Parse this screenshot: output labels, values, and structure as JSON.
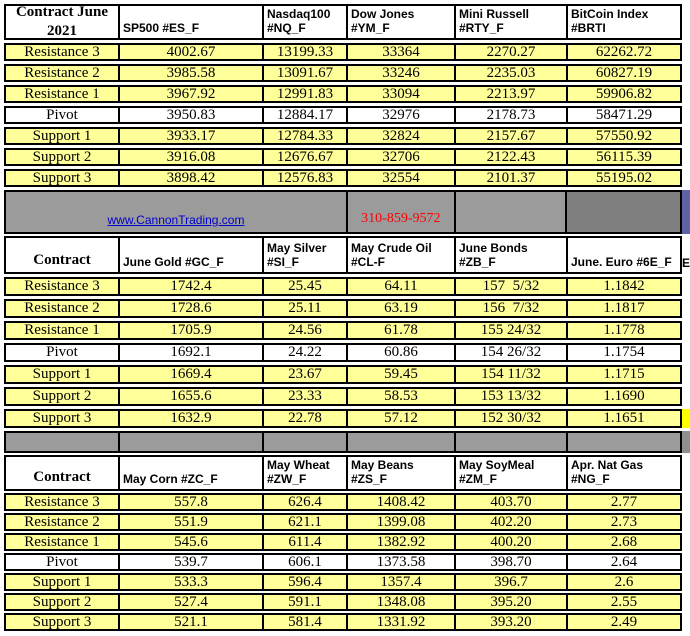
{
  "sheet": {
    "row_labels": [
      "Resistance 3",
      "Resistance 2",
      "Resistance 1",
      "Pivot",
      "Support 1",
      "Support 2",
      "Support 3"
    ],
    "banner": {
      "link": "www.CannonTrading.com",
      "phone": "310-859-9572"
    },
    "colors": {
      "row_yellow": "#ffff99",
      "highlight_yellow": "#ffff00",
      "banner_gray": "#9b9b9b",
      "banner_dark_gray": "#7f7f7f",
      "edge_purple": "#5f62a5",
      "link_blue": "#0000cc",
      "phone_red": "#ff0000"
    },
    "tables": [
      {
        "corner": "Contract June 2021",
        "columns": [
          {
            "header": "SP500 #ES_F",
            "values": [
              "4002.67",
              "3985.58",
              "3967.92",
              "3950.83",
              "3933.17",
              "3916.08",
              "3898.42"
            ]
          },
          {
            "header": "Nasdaq100\n#NQ_F",
            "values": [
              "13199.33",
              "13091.67",
              "12991.83",
              "12884.17",
              "12784.33",
              "12676.67",
              "12576.83"
            ]
          },
          {
            "header": "Dow Jones\n#YM_F",
            "values": [
              "33364",
              "33246",
              "33094",
              "32976",
              "32824",
              "32706",
              "32554"
            ]
          },
          {
            "header": "Mini Russell\n#RTY_F",
            "values": [
              "2270.27",
              "2235.03",
              "2213.97",
              "2178.73",
              "2157.67",
              "2122.43",
              "2101.37"
            ]
          },
          {
            "header": "BitCoin Index #BRTI",
            "values": [
              "62262.72",
              "60827.19",
              "59906.82",
              "58471.29",
              "57550.92",
              "56115.39",
              "55195.02"
            ]
          }
        ]
      },
      {
        "corner": "Contract",
        "edge_header": "E",
        "columns": [
          {
            "header": "June Gold #GC_F",
            "values": [
              "1742.4",
              "1728.6",
              "1705.9",
              "1692.1",
              "1669.4",
              "1655.6",
              "1632.9"
            ]
          },
          {
            "header": "May Silver\n#SI_F",
            "values": [
              "25.45",
              "25.11",
              "24.56",
              "24.22",
              "23.67",
              "23.33",
              "22.78"
            ]
          },
          {
            "header": "May Crude Oil\n#CL-F",
            "values": [
              "64.11",
              "63.19",
              "61.78",
              "60.86",
              "59.45",
              "58.53",
              "57.12"
            ]
          },
          {
            "header": "June Bonds\n#ZB_F",
            "values": [
              "157  5/32",
              "156  7/32",
              "155 24/32",
              "154 26/32",
              "154 11/32",
              "153 13/32",
              "152 30/32"
            ]
          },
          {
            "header": "June.  Euro #6E_F",
            "values": [
              "1.1842",
              "1.1817",
              "1.1778",
              "1.1754",
              "1.1715",
              "1.1690",
              "1.1651"
            ]
          }
        ]
      },
      {
        "corner": "Contract",
        "columns": [
          {
            "header": "May Corn #ZC_F",
            "values": [
              "557.8",
              "551.9",
              "545.6",
              "539.7",
              "533.3",
              "527.4",
              "521.1"
            ]
          },
          {
            "header": "May  Wheat\n#ZW_F",
            "values": [
              "626.4",
              "621.1",
              "611.4",
              "606.1",
              "596.4",
              "591.1",
              "581.4"
            ]
          },
          {
            "header": "May Beans #ZS_F",
            "values": [
              "1408.42",
              "1399.08",
              "1382.92",
              "1373.58",
              "1357.4",
              "1348.08",
              "1331.92"
            ]
          },
          {
            "header": "May SoyMeal\n#ZM_F",
            "values": [
              "403.70",
              "402.20",
              "400.20",
              "398.70",
              "396.7",
              "395.20",
              "393.20"
            ]
          },
          {
            "header": "Apr. Nat Gas #NG_F",
            "values": [
              "2.77",
              "2.73",
              "2.68",
              "2.64",
              "2.6",
              "2.55",
              "2.49"
            ]
          }
        ]
      }
    ]
  }
}
